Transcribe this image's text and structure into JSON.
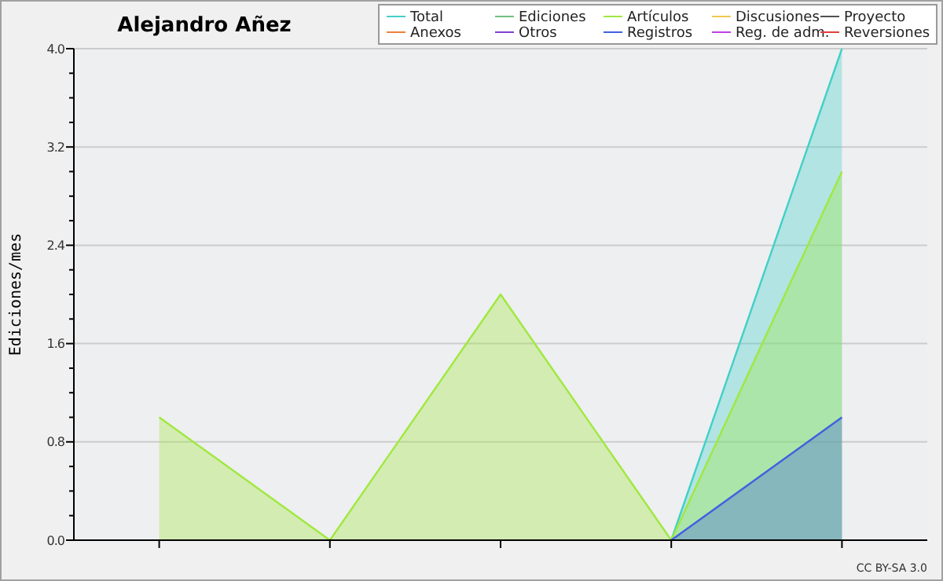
{
  "chart_data": {
    "type": "area",
    "title": "Alejandro Añez",
    "ylabel": "Ediciones/mes",
    "categories": [
      null,
      null,
      null,
      null,
      null
    ],
    "series": [
      {
        "name": "Total",
        "color": "#40d0c8",
        "values": [
          null,
          null,
          null,
          0,
          4
        ]
      },
      {
        "name": "Ediciones",
        "color": "#70c080",
        "values": [
          null,
          null,
          null,
          null,
          null
        ]
      },
      {
        "name": "Artículos",
        "color": "#a0e840",
        "values": [
          1,
          0,
          2,
          0,
          3
        ]
      },
      {
        "name": "Discusiones",
        "color": "#f0c850",
        "values": [
          null,
          null,
          null,
          null,
          null
        ]
      },
      {
        "name": "Proyecto",
        "color": "#505050",
        "values": [
          null,
          null,
          null,
          null,
          null
        ]
      },
      {
        "name": "Anexos",
        "color": "#f08040",
        "values": [
          null,
          null,
          null,
          null,
          null
        ]
      },
      {
        "name": "Otros",
        "color": "#8040d0",
        "values": [
          null,
          null,
          null,
          null,
          null
        ]
      },
      {
        "name": "Registros",
        "color": "#4060e0",
        "values": [
          null,
          null,
          null,
          0,
          1
        ]
      },
      {
        "name": "Reg. de adm.",
        "color": "#c040e0",
        "values": [
          null,
          null,
          null,
          null,
          null
        ]
      },
      {
        "name": "Reversiones",
        "color": "#e04040",
        "values": [
          null,
          null,
          null,
          null,
          null
        ]
      }
    ],
    "ylim": [
      0,
      4
    ],
    "yticks": [
      {
        "value": 0,
        "label": "0.0"
      },
      {
        "value": 0.2,
        "label": null
      },
      {
        "value": 0.4,
        "label": null
      },
      {
        "value": 0.6,
        "label": null
      },
      {
        "value": 0.8,
        "label": "0.8"
      },
      {
        "value": 1.0,
        "label": null
      },
      {
        "value": 1.2,
        "label": null
      },
      {
        "value": 1.4,
        "label": null
      },
      {
        "value": 1.6,
        "label": "1.6"
      },
      {
        "value": 1.8,
        "label": null
      },
      {
        "value": 2.0,
        "label": null
      },
      {
        "value": 2.2,
        "label": null
      },
      {
        "value": 2.4,
        "label": "2.4"
      },
      {
        "value": 2.6,
        "label": null
      },
      {
        "value": 2.8,
        "label": null
      },
      {
        "value": 3.0,
        "label": null
      },
      {
        "value": 3.2,
        "label": "3.2"
      },
      {
        "value": 3.4,
        "label": null
      },
      {
        "value": 3.6,
        "label": null
      },
      {
        "value": 3.8,
        "label": null
      },
      {
        "value": 4.0,
        "label": "4.0"
      }
    ],
    "grid": "y",
    "legend": "top right",
    "annotations": [
      "CC BY-SA 3.0"
    ]
  }
}
